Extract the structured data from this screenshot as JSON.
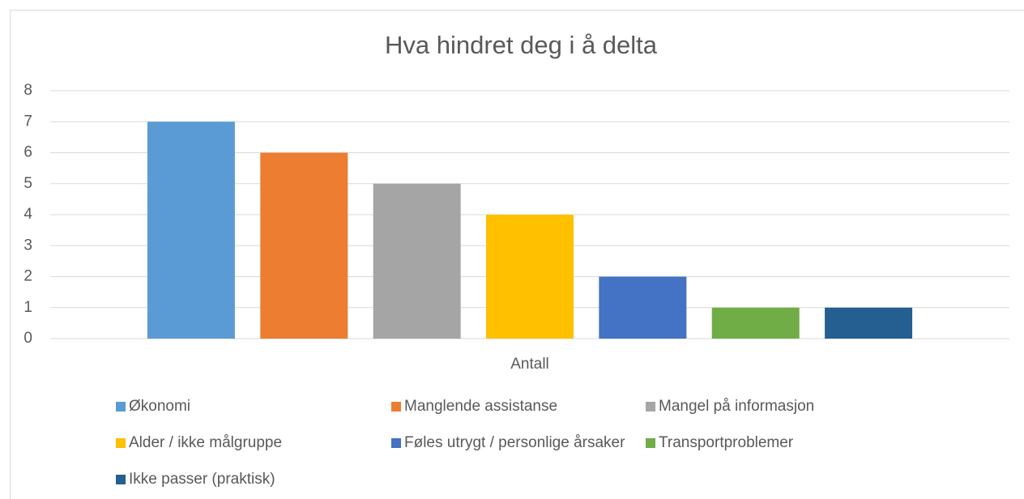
{
  "chart_data": {
    "type": "bar",
    "title": "Hva hindret deg i å delta",
    "categories": [
      "Antall"
    ],
    "series": [
      {
        "name": "Økonomi",
        "color": "#5b9bd5",
        "values": [
          7
        ]
      },
      {
        "name": "Manglende assistanse",
        "color": "#ed7d31",
        "values": [
          6
        ]
      },
      {
        "name": "Mangel på informasjon",
        "color": "#a5a5a5",
        "values": [
          5
        ]
      },
      {
        "name": "Alder / ikke målgruppe",
        "color": "#ffc000",
        "values": [
          4
        ]
      },
      {
        "name": "Føles utrygt / personlige årsaker",
        "color": "#4472c4",
        "values": [
          2
        ]
      },
      {
        "name": "Transportproblemer",
        "color": "#70ad47",
        "values": [
          1
        ]
      },
      {
        "name": "Ikke passer (praktisk)",
        "color": "#255e91",
        "values": [
          1
        ]
      }
    ],
    "ylim": [
      0,
      8
    ],
    "yticks": [
      0,
      1,
      2,
      3,
      4,
      5,
      6,
      7,
      8
    ],
    "grid": true,
    "legend": "bottom"
  }
}
